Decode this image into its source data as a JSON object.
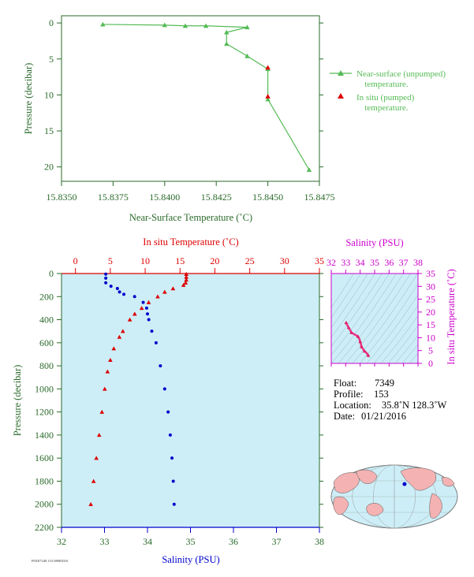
{
  "colors": {
    "near_surface": "#55bb55",
    "in_situ_red": "#dd0000",
    "salinity_blue": "#0000cc",
    "ts_magenta": "#cc00cc",
    "axis_green": "#2a6a2a",
    "panel_bg": "#cdeef7",
    "land": "#f4b2b2",
    "ocean": "#cdeef7"
  },
  "chart_data": [
    {
      "type": "line",
      "xlabel": "Near-Surface Temperature (˚C)",
      "ylabel": "Pressure (decibar)",
      "xlim": [
        15.835,
        15.8475
      ],
      "ylim": [
        22,
        -1
      ],
      "x_ticks": [
        "15.8350",
        "15.8375",
        "15.8400",
        "15.8425",
        "15.8450",
        "15.8475"
      ],
      "x_tick_values": [
        15.835,
        15.8375,
        15.84,
        15.8425,
        15.845,
        15.8475
      ],
      "y_ticks": [
        "0",
        "5",
        "10",
        "15",
        "20"
      ],
      "y_tick_values": [
        0,
        5,
        10,
        15,
        20
      ],
      "legend_position": "right",
      "series": [
        {
          "name": "Near-surface (unpumped) temperature.",
          "legend_lines": [
            "Near-surface (unpumped)",
            "temperature."
          ],
          "points": [
            {
              "x": 15.837,
              "y": 0.2
            },
            {
              "x": 15.84,
              "y": 0.3
            },
            {
              "x": 15.841,
              "y": 0.4
            },
            {
              "x": 15.842,
              "y": 0.4
            },
            {
              "x": 15.844,
              "y": 0.6
            },
            {
              "x": 15.843,
              "y": 1.3
            },
            {
              "x": 15.843,
              "y": 2.9
            },
            {
              "x": 15.844,
              "y": 4.6
            },
            {
              "x": 15.845,
              "y": 6.4
            },
            {
              "x": 15.845,
              "y": 10.6
            },
            {
              "x": 15.847,
              "y": 20.4
            }
          ]
        },
        {
          "name": "In situ (pumped) temperature.",
          "legend_lines": [
            "In situ (pumped)",
            "temperature."
          ],
          "points": [
            {
              "x": 15.845,
              "y": 6.2
            },
            {
              "x": 15.845,
              "y": 10.2
            }
          ]
        }
      ]
    },
    {
      "type": "scatter",
      "x_top_label": "In situ Temperature (˚C)",
      "x_bottom_label": "Salinity (PSU)",
      "ylabel": "Pressure (decibar)",
      "temp_lim": [
        -2,
        35
      ],
      "sal_lim": [
        32,
        38
      ],
      "ylim": [
        2200,
        0
      ],
      "temp_ticks": [
        "0",
        "5",
        "10",
        "15",
        "20",
        "25",
        "30",
        "35"
      ],
      "temp_tick_values": [
        0,
        5,
        10,
        15,
        20,
        25,
        30,
        35
      ],
      "sal_ticks": [
        "32",
        "33",
        "34",
        "35",
        "36",
        "37",
        "38"
      ],
      "sal_tick_values": [
        32,
        33,
        34,
        35,
        36,
        37,
        38
      ],
      "y_ticks": [
        "0",
        "200",
        "400",
        "600",
        "800",
        "1000",
        "1200",
        "1400",
        "1600",
        "1800",
        "2000",
        "2200"
      ],
      "y_tick_values": [
        0,
        200,
        400,
        600,
        800,
        1000,
        1200,
        1400,
        1600,
        1800,
        2000,
        2200
      ],
      "temperature_profile": [
        {
          "t": 15.9,
          "p": 5
        },
        {
          "t": 15.9,
          "p": 30
        },
        {
          "t": 15.9,
          "p": 55
        },
        {
          "t": 15.8,
          "p": 80
        },
        {
          "t": 15.5,
          "p": 100
        },
        {
          "t": 14.0,
          "p": 130
        },
        {
          "t": 12.8,
          "p": 160
        },
        {
          "t": 11.8,
          "p": 200
        },
        {
          "t": 10.5,
          "p": 250
        },
        {
          "t": 9.5,
          "p": 300
        },
        {
          "t": 8.5,
          "p": 350
        },
        {
          "t": 7.8,
          "p": 400
        },
        {
          "t": 6.8,
          "p": 500
        },
        {
          "t": 6.3,
          "p": 550
        },
        {
          "t": 5.5,
          "p": 650
        },
        {
          "t": 5.0,
          "p": 750
        },
        {
          "t": 4.6,
          "p": 850
        },
        {
          "t": 4.2,
          "p": 1000
        },
        {
          "t": 3.8,
          "p": 1200
        },
        {
          "t": 3.4,
          "p": 1400
        },
        {
          "t": 3.0,
          "p": 1600
        },
        {
          "t": 2.6,
          "p": 1800
        },
        {
          "t": 2.2,
          "p": 2000
        }
      ],
      "salinity_profile": [
        {
          "s": 33.03,
          "p": 5
        },
        {
          "s": 33.03,
          "p": 40
        },
        {
          "s": 33.03,
          "p": 80
        },
        {
          "s": 33.15,
          "p": 110
        },
        {
          "s": 33.3,
          "p": 130
        },
        {
          "s": 33.35,
          "p": 160
        },
        {
          "s": 33.45,
          "p": 180
        },
        {
          "s": 33.7,
          "p": 200
        },
        {
          "s": 33.9,
          "p": 250
        },
        {
          "s": 33.98,
          "p": 300
        },
        {
          "s": 34.0,
          "p": 350
        },
        {
          "s": 34.03,
          "p": 400
        },
        {
          "s": 34.1,
          "p": 500
        },
        {
          "s": 34.2,
          "p": 600
        },
        {
          "s": 34.3,
          "p": 800
        },
        {
          "s": 34.4,
          "p": 1000
        },
        {
          "s": 34.48,
          "p": 1200
        },
        {
          "s": 34.53,
          "p": 1400
        },
        {
          "s": 34.57,
          "p": 1600
        },
        {
          "s": 34.6,
          "p": 1800
        },
        {
          "s": 34.62,
          "p": 2000
        }
      ]
    },
    {
      "type": "scatter",
      "title": "Salinity (PSU)",
      "ylabel": "In situ Temperature (˚C)",
      "xlim": [
        32,
        38
      ],
      "ylim": [
        0,
        35
      ],
      "x_ticks": [
        "32",
        "33",
        "34",
        "35",
        "36",
        "37",
        "38"
      ],
      "x_tick_values": [
        32,
        33,
        34,
        35,
        36,
        37,
        38
      ],
      "y_ticks": [
        "0",
        "5",
        "10",
        "15",
        "20",
        "25",
        "30",
        "35"
      ],
      "y_tick_values": [
        0,
        5,
        10,
        15,
        20,
        25,
        30,
        35
      ],
      "points": [
        {
          "s": 33.03,
          "t": 15.9
        },
        {
          "s": 33.1,
          "t": 15.0
        },
        {
          "s": 33.2,
          "t": 14.0
        },
        {
          "s": 33.3,
          "t": 13.0
        },
        {
          "s": 33.4,
          "t": 12.0
        },
        {
          "s": 33.6,
          "t": 11.3
        },
        {
          "s": 33.85,
          "t": 10.5
        },
        {
          "s": 33.95,
          "t": 9.5
        },
        {
          "s": 34.0,
          "t": 8.5
        },
        {
          "s": 34.05,
          "t": 7.5
        },
        {
          "s": 34.1,
          "t": 6.5
        },
        {
          "s": 34.2,
          "t": 5.5
        },
        {
          "s": 34.3,
          "t": 4.8
        },
        {
          "s": 34.45,
          "t": 4.0
        },
        {
          "s": 34.55,
          "t": 3.2
        },
        {
          "s": 34.62,
          "t": 2.5
        }
      ]
    }
  ],
  "info": {
    "float_label": "Float:",
    "float_value": "7349",
    "profile_label": "Profile:",
    "profile_value": "153",
    "location_label": "Location:",
    "location_value": "35.8˚N  128.3˚W",
    "date_label": "Date:",
    "date_value": "01/21/2016"
  },
  "map": {
    "location_lat": 35.8,
    "location_lon": -128.3
  },
  "footer": {
    "text": "P0X07349.153 08083016"
  }
}
